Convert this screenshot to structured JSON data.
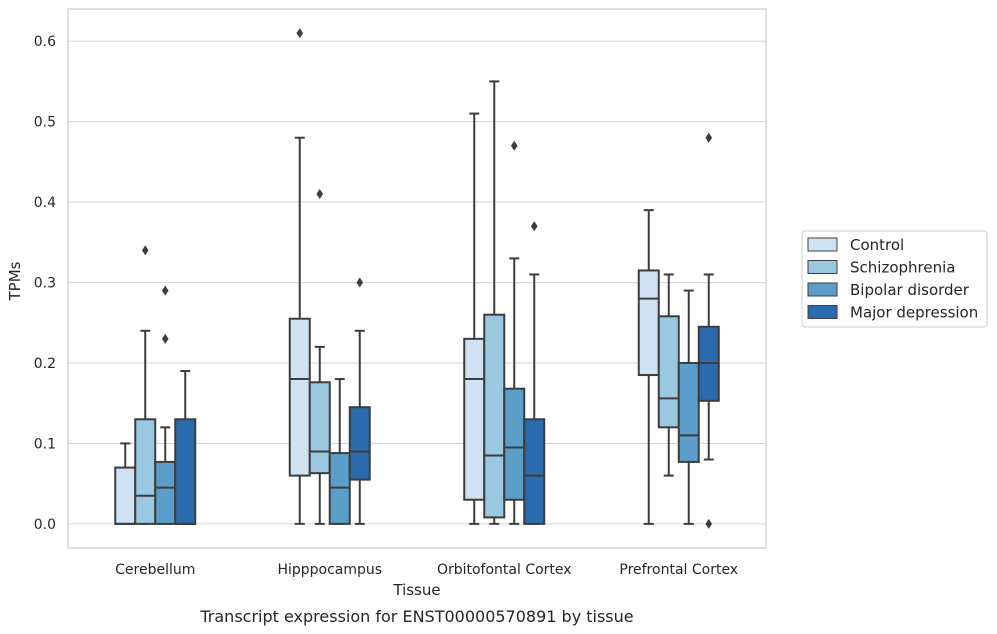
{
  "chart_data": {
    "type": "boxplot",
    "title": "",
    "caption": "Transcript expression for ENST00000570891 by tissue",
    "xlabel": "Tissue",
    "ylabel": "TPMs",
    "ylim": [
      -0.03,
      0.64
    ],
    "yticks": [
      0.0,
      0.1,
      0.2,
      0.3,
      0.4,
      0.5,
      0.6
    ],
    "ytick_labels": [
      "0.0",
      "0.1",
      "0.2",
      "0.3",
      "0.4",
      "0.5",
      "0.6"
    ],
    "grid": true,
    "legend_position": "right",
    "categories": [
      "Cerebellum",
      "Hipppocampus",
      "Orbitofontal Cortex",
      "Prefrontal Cortex"
    ],
    "series": [
      {
        "name": "Control",
        "color": "#d0e2f2",
        "boxes": [
          {
            "whislo": 0.0,
            "q1": 0.0,
            "med": 0.0,
            "q3": 0.07,
            "whishi": 0.1,
            "fliers": []
          },
          {
            "whislo": 0.0,
            "q1": 0.06,
            "med": 0.18,
            "q3": 0.255,
            "whishi": 0.48,
            "fliers": [
              0.61
            ]
          },
          {
            "whislo": 0.0,
            "q1": 0.03,
            "med": 0.18,
            "q3": 0.23,
            "whishi": 0.51,
            "fliers": []
          },
          {
            "whislo": 0.0,
            "q1": 0.185,
            "med": 0.28,
            "q3": 0.315,
            "whishi": 0.39,
            "fliers": []
          }
        ]
      },
      {
        "name": "Schizophrenia",
        "color": "#9ac8e0",
        "boxes": [
          {
            "whislo": 0.0,
            "q1": 0.0,
            "med": 0.035,
            "q3": 0.13,
            "whishi": 0.24,
            "fliers": [
              0.34
            ]
          },
          {
            "whislo": 0.0,
            "q1": 0.063,
            "med": 0.09,
            "q3": 0.176,
            "whishi": 0.22,
            "fliers": [
              0.41
            ]
          },
          {
            "whislo": 0.0,
            "q1": 0.008,
            "med": 0.085,
            "q3": 0.26,
            "whishi": 0.55,
            "fliers": []
          },
          {
            "whislo": 0.06,
            "q1": 0.12,
            "med": 0.156,
            "q3": 0.258,
            "whishi": 0.31,
            "fliers": []
          }
        ]
      },
      {
        "name": "Bipolar disorder",
        "color": "#5a9ec9",
        "boxes": [
          {
            "whislo": 0.0,
            "q1": 0.0,
            "med": 0.045,
            "q3": 0.077,
            "whishi": 0.12,
            "fliers": [
              0.23,
              0.29
            ]
          },
          {
            "whislo": 0.0,
            "q1": 0.0,
            "med": 0.045,
            "q3": 0.088,
            "whishi": 0.18,
            "fliers": []
          },
          {
            "whislo": 0.0,
            "q1": 0.03,
            "med": 0.095,
            "q3": 0.168,
            "whishi": 0.33,
            "fliers": [
              0.47
            ]
          },
          {
            "whislo": 0.0,
            "q1": 0.077,
            "med": 0.11,
            "q3": 0.2,
            "whishi": 0.29,
            "fliers": []
          }
        ]
      },
      {
        "name": "Major depression",
        "color": "#2a6aad",
        "boxes": [
          {
            "whislo": 0.0,
            "q1": 0.0,
            "med": 0.0,
            "q3": 0.13,
            "whishi": 0.19,
            "fliers": []
          },
          {
            "whislo": 0.0,
            "q1": 0.055,
            "med": 0.09,
            "q3": 0.145,
            "whishi": 0.24,
            "fliers": [
              0.3
            ]
          },
          {
            "whislo": 0.0,
            "q1": 0.0,
            "med": 0.06,
            "q3": 0.13,
            "whishi": 0.31,
            "fliers": [
              0.37
            ]
          },
          {
            "whislo": 0.08,
            "q1": 0.153,
            "med": 0.2,
            "q3": 0.245,
            "whishi": 0.31,
            "fliers": [
              0.48,
              0.0
            ]
          }
        ]
      }
    ]
  }
}
